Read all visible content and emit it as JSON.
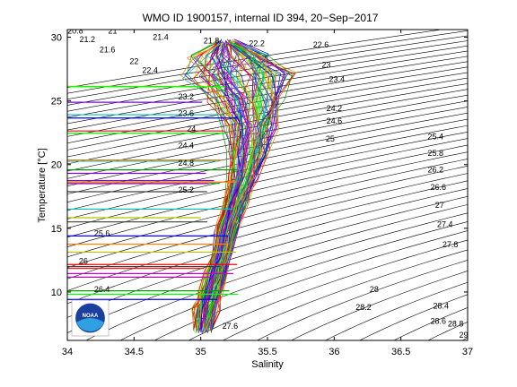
{
  "chart_data": {
    "type": "line",
    "title": "WMO ID 1900157, internal ID 394, 20−Sep−2017",
    "xlabel": "Salinity",
    "ylabel": "Temperature [°C]",
    "xlim": [
      34,
      37
    ],
    "ylim": [
      6.2,
      30.6
    ],
    "xticks": [
      34,
      34.5,
      35,
      35.5,
      36,
      36.5,
      37
    ],
    "xtick_labels": [
      "34",
      "34.5",
      "35",
      "35.5",
      "36",
      "36.5",
      "37"
    ],
    "yticks": [
      10,
      15,
      20,
      25,
      30
    ],
    "ytick_labels": [
      "10",
      "15",
      "20",
      "25",
      "30"
    ],
    "grid": false,
    "legend": "none",
    "isopycnals": {
      "color": "#000000",
      "levels": [
        20.8,
        21,
        21.2,
        21.4,
        21.6,
        21.8,
        22,
        22.2,
        22.4,
        22.6,
        22.8,
        23,
        23.2,
        23.4,
        23.6,
        23.8,
        24,
        24.2,
        24.4,
        24.6,
        24.8,
        25,
        25.2,
        25.4,
        25.6,
        25.8,
        26,
        26.2,
        26.4,
        26.6,
        26.8,
        27,
        27.2,
        27.4,
        27.6,
        27.8,
        28,
        28.2,
        28.4,
        28.6,
        28.8,
        29
      ],
      "labels": [
        {
          "text": "20.8",
          "s": 34.06,
          "t": 30.3
        },
        {
          "text": "21",
          "s": 34.34,
          "t": 30.3
        },
        {
          "text": "21.2",
          "s": 34.15,
          "t": 29.6
        },
        {
          "text": "21.4",
          "s": 34.7,
          "t": 29.8
        },
        {
          "text": "21.6",
          "s": 34.3,
          "t": 28.8
        },
        {
          "text": "21.8",
          "s": 35.08,
          "t": 29.5
        },
        {
          "text": "22",
          "s": 34.5,
          "t": 27.9
        },
        {
          "text": "22.2",
          "s": 35.42,
          "t": 29.3
        },
        {
          "text": "22.4",
          "s": 34.62,
          "t": 27.2
        },
        {
          "text": "23.2",
          "s": 34.89,
          "t": 25.1
        },
        {
          "text": "23.6",
          "s": 34.89,
          "t": 23.8
        },
        {
          "text": "24",
          "s": 34.93,
          "t": 22.6
        },
        {
          "text": "24.4",
          "s": 34.89,
          "t": 21.3
        },
        {
          "text": "24.8",
          "s": 34.89,
          "t": 19.9
        },
        {
          "text": "25.2",
          "s": 34.89,
          "t": 17.8
        },
        {
          "text": "25.6",
          "s": 34.26,
          "t": 14.4
        },
        {
          "text": "26",
          "s": 34.12,
          "t": 12.2
        },
        {
          "text": "26.4",
          "s": 34.26,
          "t": 10.0
        },
        {
          "text": "27.6",
          "s": 35.22,
          "t": 7.1
        },
        {
          "text": "24.6",
          "s": 36.0,
          "t": 23.2
        },
        {
          "text": "25",
          "s": 35.97,
          "t": 21.8
        },
        {
          "text": "25.4",
          "s": 36.76,
          "t": 22.0
        },
        {
          "text": "25.8",
          "s": 36.76,
          "t": 20.7
        },
        {
          "text": "26.2",
          "s": 36.76,
          "t": 19.4
        },
        {
          "text": "26.6",
          "s": 36.78,
          "t": 18.0
        },
        {
          "text": "27",
          "s": 36.79,
          "t": 16.6
        },
        {
          "text": "27.4",
          "s": 36.83,
          "t": 15.1
        },
        {
          "text": "27.8",
          "s": 36.87,
          "t": 13.5
        },
        {
          "text": "28",
          "s": 36.3,
          "t": 10.0
        },
        {
          "text": "28.2",
          "s": 36.22,
          "t": 8.6
        },
        {
          "text": "28.4",
          "s": 36.8,
          "t": 8.7
        },
        {
          "text": "28.6",
          "s": 36.78,
          "t": 7.5
        },
        {
          "text": "28.8",
          "s": 36.91,
          "t": 7.3
        },
        {
          "text": "29",
          "s": 36.97,
          "t": 6.4
        },
        {
          "text": "22.6",
          "s": 35.9,
          "t": 29.2
        },
        {
          "text": "23",
          "s": 35.94,
          "t": 27.6
        },
        {
          "text": "23.4",
          "s": 36.02,
          "t": 26.5
        },
        {
          "text": "24.2",
          "s": 36.0,
          "t": 24.2
        }
      ]
    },
    "profiles": {
      "colors": [
        "#0000ff",
        "#ff0000",
        "#00a000",
        "#00bfbf",
        "#bf00bf",
        "#bfbf00",
        "#404040",
        "#ff8000",
        "#8000ff",
        "#00ff00"
      ],
      "trend": [
        {
          "t": 29.6,
          "s": 35.2
        },
        {
          "t": 28.5,
          "s": 35.25
        },
        {
          "t": 27.0,
          "s": 35.3
        },
        {
          "t": 25.0,
          "s": 35.36
        },
        {
          "t": 23.0,
          "s": 35.38
        },
        {
          "t": 21.0,
          "s": 35.36
        },
        {
          "t": 19.0,
          "s": 35.32
        },
        {
          "t": 17.0,
          "s": 35.26
        },
        {
          "t": 15.0,
          "s": 35.2
        },
        {
          "t": 13.0,
          "s": 35.16
        },
        {
          "t": 11.5,
          "s": 35.12
        },
        {
          "t": 10.0,
          "s": 35.08
        },
        {
          "t": 8.5,
          "s": 35.04
        },
        {
          "t": 7.0,
          "s": 35.02
        }
      ],
      "spread": [
        0.08,
        0.35,
        0.45,
        0.3,
        0.22,
        0.16,
        0.12,
        0.1,
        0.09,
        0.08,
        0.09,
        0.1,
        0.1,
        0.08
      ]
    }
  },
  "logo": {
    "text": "NOAA"
  }
}
